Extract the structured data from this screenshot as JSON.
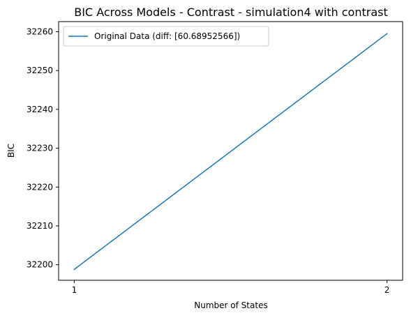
{
  "chart_data": {
    "type": "line",
    "title": "BIC Across Models - Contrast - simulation4 with contrast",
    "xlabel": "Number of States",
    "ylabel": "BIC",
    "x": [
      1,
      2
    ],
    "x_ticks": [
      1,
      2
    ],
    "y_ticks": [
      32200,
      32210,
      32220,
      32230,
      32240,
      32250,
      32260
    ],
    "xlim": [
      0.95,
      2.05
    ],
    "ylim": [
      32196,
      32262.6
    ],
    "grid": false,
    "legend_position": "upper-left",
    "series": [
      {
        "name": "Original Data (diff: [60.68952566])",
        "color": "#1f77b4",
        "values": [
          32198.8,
          32259.5
        ]
      }
    ]
  }
}
